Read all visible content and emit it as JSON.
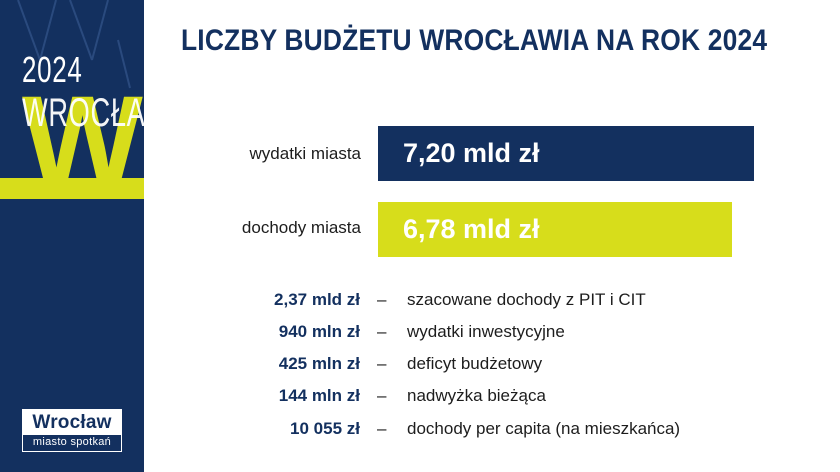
{
  "colors": {
    "navy": "#13305f",
    "lime": "#d7dd1b",
    "text": "#1d1d1d",
    "white": "#ffffff"
  },
  "side": {
    "year": "2024",
    "city": "WROCŁAW",
    "initial": "W"
  },
  "logo": {
    "name": "Wrocław",
    "tagline": "miasto spotkań"
  },
  "title": "LICZBY BUDŻETU WROCŁAWIA NA ROK 2024",
  "chart_data": {
    "type": "bar",
    "orientation": "horizontal",
    "title": "LICZBY BUDŻETU WROCŁAWIA NA ROK 2024",
    "unit": "mld zł",
    "categories": [
      "wydatki miasta",
      "dochody miasta"
    ],
    "values": [
      7.2,
      6.78
    ],
    "value_labels": [
      "7,20 mld zł",
      "6,78 mld zł"
    ],
    "bar_colors": [
      "#13305f",
      "#d7dd1b"
    ],
    "value_label_colors": [
      "#ffffff",
      "#ffffff"
    ]
  },
  "facts": [
    {
      "amount": "2,37 mld zł",
      "dash": "–",
      "desc": "szacowane dochody z PIT i CIT"
    },
    {
      "amount": "940 mln zł",
      "dash": "–",
      "desc": "wydatki inwestycyjne"
    },
    {
      "amount": "425 mln zł",
      "dash": "–",
      "desc": "deficyt budżetowy"
    },
    {
      "amount": "144 mln zł",
      "dash": "–",
      "desc": "nadwyżka bieżąca"
    },
    {
      "amount": "10 055 zł",
      "dash": "–",
      "desc": "dochody per capita (na mieszkańca)"
    }
  ]
}
